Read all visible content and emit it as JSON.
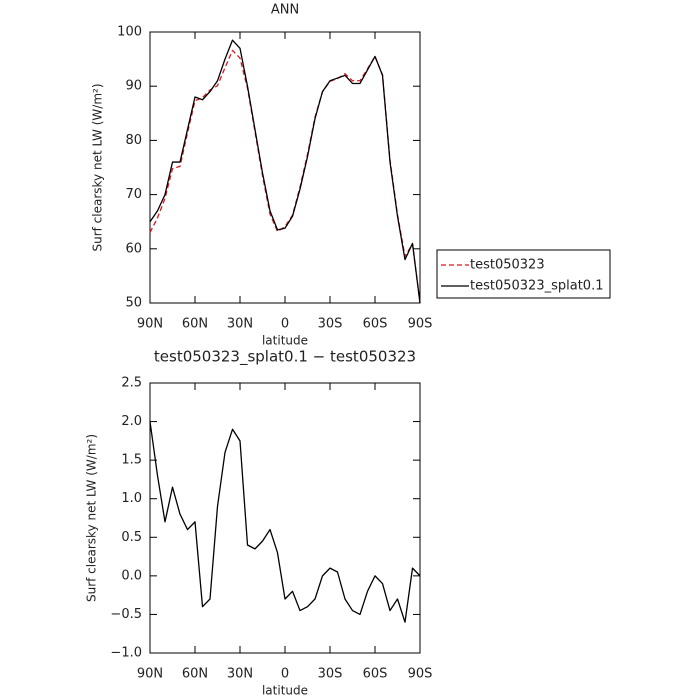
{
  "chart_data": [
    {
      "type": "line",
      "title": "ANN",
      "ylabel": "Surf clearsky net LW (W/m²)",
      "xlabel": "latitude",
      "x": [
        90,
        85,
        80,
        75,
        70,
        65,
        60,
        55,
        50,
        45,
        40,
        35,
        30,
        25,
        20,
        15,
        10,
        5,
        0,
        -5,
        -10,
        -15,
        -20,
        -25,
        -30,
        -35,
        -40,
        -45,
        -50,
        -55,
        -60,
        -65,
        -70,
        -75,
        -80,
        -85,
        -90
      ],
      "series": [
        {
          "name": "test050323",
          "color": "#e0141e",
          "dash": true,
          "values": [
            63,
            65.7,
            69.3,
            74.8,
            75.2,
            81.4,
            87.3,
            87.9,
            89.3,
            90.1,
            93.4,
            96.6,
            95.2,
            89.6,
            81.6,
            73.5,
            66.4,
            63.2,
            64.1,
            66.2,
            71.4,
            77.4,
            84.3,
            89,
            90.9,
            91.4,
            92.3,
            91,
            91,
            93.2,
            95.5,
            92.1,
            76.4,
            66.3,
            58.6,
            60.9,
            50
          ]
        },
        {
          "name": "test050323_splat0.1",
          "color": "#000000",
          "dash": false,
          "values": [
            65,
            67,
            70,
            76,
            76,
            82,
            88,
            87.5,
            89,
            91,
            95,
            98.5,
            97,
            90,
            82,
            74,
            67,
            63.5,
            63.8,
            66,
            71,
            77,
            84,
            89,
            91,
            91.5,
            92,
            90.5,
            90.5,
            93,
            95.5,
            92,
            76,
            66,
            58,
            61,
            50
          ]
        }
      ],
      "xlim": [
        90,
        -90
      ],
      "xticks": [
        {
          "value": 90,
          "label": "90N"
        },
        {
          "value": 60,
          "label": "60N"
        },
        {
          "value": 30,
          "label": "30N"
        },
        0,
        {
          "value": -30,
          "label": "30S"
        },
        {
          "value": -60,
          "label": "60S"
        },
        {
          "value": -90,
          "label": "90S"
        }
      ],
      "ylim": [
        50,
        100
      ],
      "yticks": [
        50,
        60,
        70,
        80,
        90,
        100
      ],
      "legend": "right"
    },
    {
      "type": "line",
      "title": "test050323_splat0.1 − test050323",
      "ylabel": "Surf clearsky net LW (W/m²)",
      "xlabel": "latitude",
      "x": [
        90,
        85,
        80,
        75,
        70,
        65,
        60,
        55,
        50,
        45,
        40,
        35,
        30,
        25,
        20,
        15,
        10,
        5,
        0,
        -5,
        -10,
        -15,
        -20,
        -25,
        -30,
        -35,
        -40,
        -45,
        -50,
        -55,
        -60,
        -65,
        -70,
        -75,
        -80,
        -85,
        -90
      ],
      "series": [
        {
          "color": "#000000",
          "dash": false,
          "values": [
            2.0,
            1.3,
            0.7,
            1.15,
            0.8,
            0.6,
            0.7,
            -0.4,
            -0.3,
            0.9,
            1.6,
            1.9,
            1.75,
            0.4,
            0.35,
            0.45,
            0.6,
            0.3,
            -0.3,
            -0.2,
            -0.45,
            -0.4,
            -0.3,
            0.0,
            0.1,
            0.05,
            -0.3,
            -0.45,
            -0.5,
            -0.2,
            0.0,
            -0.1,
            -0.45,
            -0.3,
            -0.6,
            0.1,
            0.0
          ]
        }
      ],
      "xlim": [
        90,
        -90
      ],
      "xticks": [
        {
          "value": 90,
          "label": "90N"
        },
        {
          "value": 60,
          "label": "60N"
        },
        {
          "value": 30,
          "label": "30N"
        },
        0,
        {
          "value": -30,
          "label": "30S"
        },
        {
          "value": -60,
          "label": "60S"
        },
        {
          "value": -90,
          "label": "90S"
        }
      ],
      "ylim": [
        -1,
        2.5
      ],
      "yticks": [
        {
          "value": -1,
          "label": "−1.0"
        },
        {
          "value": -0.5,
          "label": "−0.5"
        },
        {
          "value": 0,
          "label": "0.0"
        },
        0.5,
        {
          "value": 1,
          "label": "1.0"
        },
        1.5,
        {
          "value": 2,
          "label": "2.0"
        },
        2.5
      ]
    }
  ]
}
